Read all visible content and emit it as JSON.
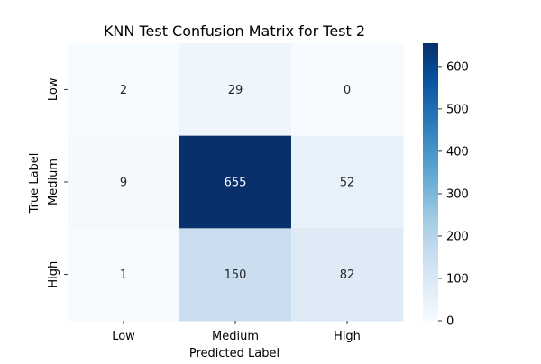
{
  "chart_data": {
    "type": "heatmap",
    "title": "KNN Test Confusion Matrix for Test 2",
    "xlabel": "Predicted Label",
    "ylabel": "True Label",
    "x_categories": [
      "Low",
      "Medium",
      "High"
    ],
    "y_categories": [
      "Low",
      "Medium",
      "High"
    ],
    "values": [
      [
        2,
        29,
        0
      ],
      [
        9,
        655,
        52
      ],
      [
        1,
        150,
        82
      ]
    ],
    "colorbar": {
      "ticks": [
        0,
        100,
        200,
        300,
        400,
        500,
        600
      ],
      "range": [
        0,
        655
      ],
      "colormap": "Blues"
    }
  }
}
